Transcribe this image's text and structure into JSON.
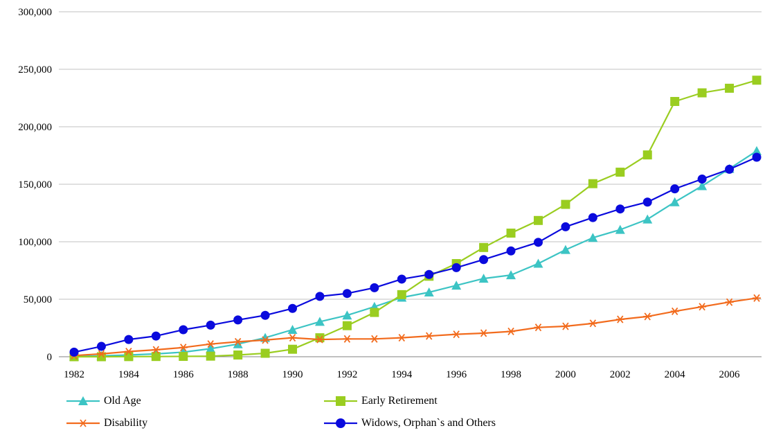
{
  "chart_data": {
    "type": "line",
    "title": "",
    "xlabel": "",
    "ylabel": "",
    "x": [
      1982,
      1983,
      1984,
      1985,
      1986,
      1987,
      1988,
      1989,
      1990,
      1991,
      1992,
      1993,
      1994,
      1995,
      1996,
      1997,
      1998,
      1999,
      2000,
      2001,
      2002,
      2003,
      2004,
      2005,
      2006,
      2007
    ],
    "x_tick_labels": [
      "1982",
      "1984",
      "1986",
      "1988",
      "1990",
      "1992",
      "1994",
      "1996",
      "1998",
      "2000",
      "2002",
      "2004",
      "2006"
    ],
    "y_tick_labels": [
      "0",
      "50,000",
      "100,000",
      "150,000",
      "200,000",
      "250,000",
      "300,000"
    ],
    "ylim": [
      0,
      300000
    ],
    "grid": true,
    "legend_position": "bottom",
    "series": [
      {
        "name": "Old Age",
        "color": "#3CC4C4",
        "marker": "triangle",
        "values": [
          300,
          800,
          1500,
          2500,
          4000,
          7000,
          11000,
          16500,
          23500,
          30500,
          36000,
          43500,
          51500,
          56000,
          62000,
          68000,
          71000,
          81000,
          93000,
          103500,
          110500,
          119500,
          134500,
          148500,
          163500,
          179000
        ]
      },
      {
        "name": "Early Retirement",
        "color": "#9ACD20",
        "marker": "square",
        "values": [
          0,
          0,
          100,
          200,
          300,
          500,
          1500,
          3000,
          6500,
          16500,
          27000,
          38500,
          54000,
          70000,
          81000,
          95000,
          107500,
          118500,
          132500,
          150500,
          160500,
          175500,
          222000,
          229500,
          233500,
          240500
        ]
      },
      {
        "name": "Disability",
        "color": "#F26B1D",
        "marker": "star",
        "values": [
          1000,
          2500,
          4500,
          6000,
          8000,
          11000,
          13000,
          14500,
          16500,
          15000,
          15500,
          15500,
          16500,
          18000,
          19500,
          20500,
          22000,
          25500,
          26500,
          29000,
          32500,
          35000,
          39500,
          43500,
          47500,
          51000
        ]
      },
      {
        "name": "Widows, Orphan`s and Others",
        "color": "#0A0ADD",
        "marker": "circle",
        "values": [
          4000,
          9000,
          15000,
          18000,
          23500,
          27500,
          32000,
          36000,
          42000,
          52500,
          55000,
          60000,
          67500,
          71500,
          77500,
          84500,
          92000,
          99500,
          113000,
          121000,
          128500,
          134500,
          146000,
          154500,
          163000,
          173500
        ]
      }
    ]
  }
}
